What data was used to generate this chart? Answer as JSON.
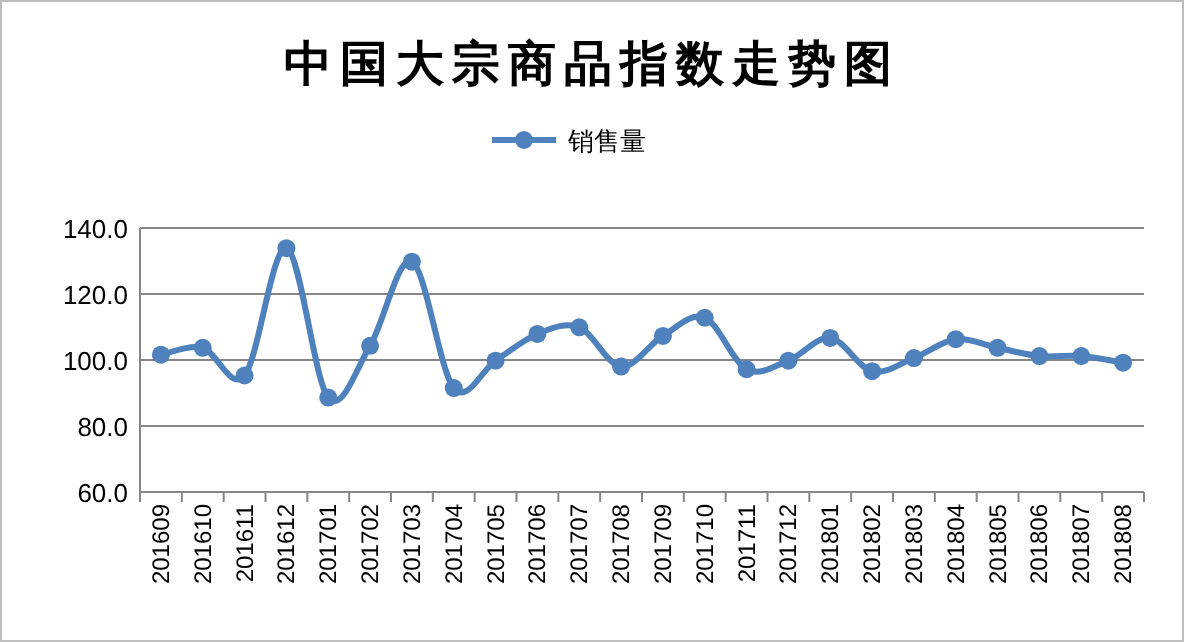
{
  "chart_data": {
    "type": "line",
    "title": "中国大宗商品指数走势图",
    "categories": [
      "201609",
      "201610",
      "201611",
      "201612",
      "201701",
      "201702",
      "201703",
      "201704",
      "201705",
      "201706",
      "201707",
      "201708",
      "201709",
      "201710",
      "201711",
      "201712",
      "201801",
      "201802",
      "201803",
      "201804",
      "201805",
      "201806",
      "201807",
      "201808"
    ],
    "series": [
      {
        "name": "销售量",
        "color": "#4f81bd",
        "values": [
          101.6,
          103.7,
          95.3,
          133.9,
          88.6,
          104.3,
          129.8,
          91.5,
          99.8,
          107.9,
          109.9,
          98.0,
          107.3,
          112.8,
          97.2,
          99.8,
          106.7,
          96.6,
          100.6,
          106.3,
          103.7,
          101.2,
          101.2,
          99.2
        ]
      }
    ],
    "ylim": [
      60,
      140
    ],
    "yticks": [
      {
        "value": 60,
        "label": "60.0"
      },
      {
        "value": 80,
        "label": "80.0"
      },
      {
        "value": 100,
        "label": "100.0"
      },
      {
        "value": 120,
        "label": "120.0"
      },
      {
        "value": 140,
        "label": "140.0"
      }
    ],
    "grid": "y",
    "legend": "top",
    "marker": "circle",
    "line_style": "solid"
  }
}
